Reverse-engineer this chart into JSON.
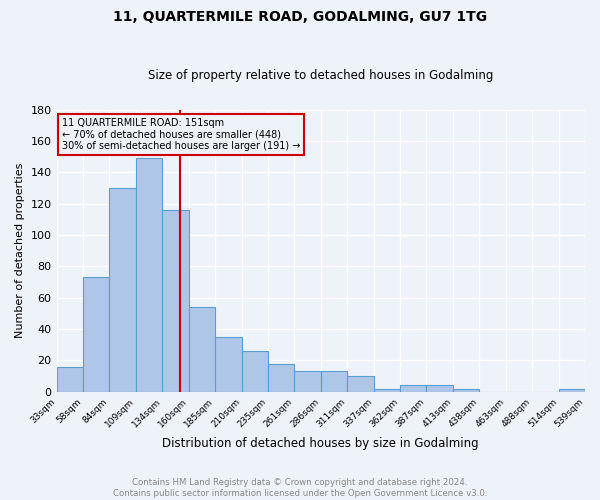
{
  "title": "11, QUARTERMILE ROAD, GODALMING, GU7 1TG",
  "subtitle": "Size of property relative to detached houses in Godalming",
  "xlabel": "Distribution of detached houses by size in Godalming",
  "ylabel": "Number of detached properties",
  "bar_heights": [
    16,
    73,
    130,
    149,
    116,
    54,
    35,
    26,
    18,
    13,
    13,
    10,
    2,
    4,
    4,
    2,
    0,
    0,
    0,
    2
  ],
  "bar_labels": [
    "33sqm",
    "58sqm",
    "84sqm",
    "109sqm",
    "134sqm",
    "160sqm",
    "185sqm",
    "210sqm",
    "235sqm",
    "261sqm",
    "286sqm",
    "311sqm",
    "337sqm",
    "362sqm",
    "387sqm",
    "413sqm",
    "438sqm",
    "463sqm",
    "488sqm",
    "514sqm",
    "539sqm"
  ],
  "bar_color": "#aec6e8",
  "bar_edge_color": "#5a9fd4",
  "ylim": [
    0,
    180
  ],
  "yticks": [
    0,
    20,
    40,
    60,
    80,
    100,
    120,
    140,
    160,
    180
  ],
  "vline_color": "#cc0000",
  "annotation_lines": [
    "11 QUARTERMILE ROAD: 151sqm",
    "← 70% of detached houses are smaller (448)",
    "30% of semi-detached houses are larger (191) →"
  ],
  "annotation_box_color": "#cc0000",
  "footer_line1": "Contains HM Land Registry data © Crown copyright and database right 2024.",
  "footer_line2": "Contains public sector information licensed under the Open Government Licence v3.0.",
  "bg_color": "#eef2f9",
  "grid_color": "#ffffff"
}
